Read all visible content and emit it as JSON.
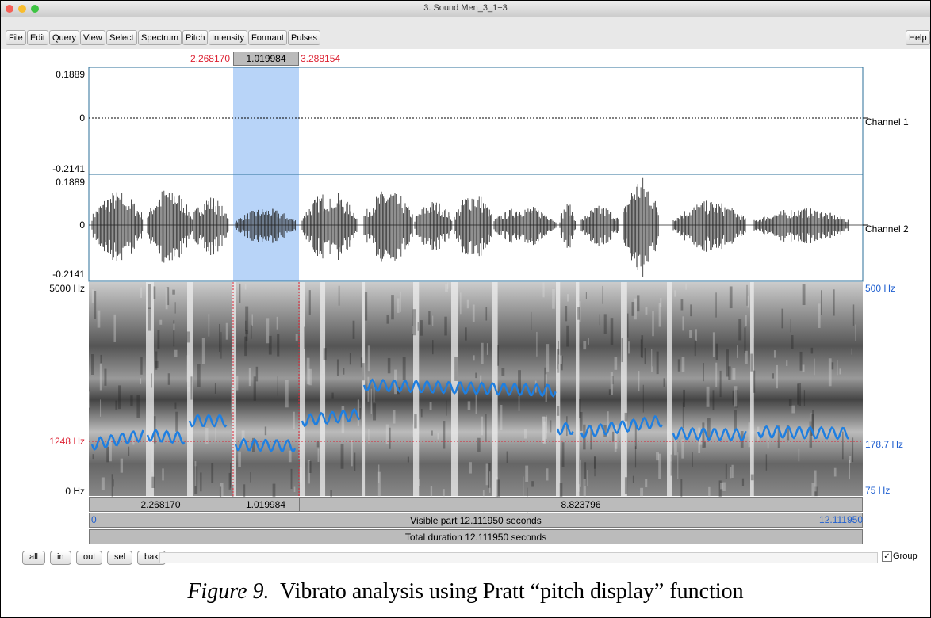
{
  "window": {
    "title": "3. Sound Men_3_1+3"
  },
  "menu": [
    "File",
    "Edit",
    "Query",
    "View",
    "Select",
    "Spectrum",
    "Pitch",
    "Intensity",
    "Formant",
    "Pulses"
  ],
  "help": "Help",
  "selection": {
    "start": "2.268170",
    "length": "1.019984",
    "end": "3.288154"
  },
  "channels": [
    {
      "name": "Channel 1",
      "top": "0.1889",
      "zero": "0",
      "bottom": "-0.2141"
    },
    {
      "name": "Channel 2",
      "top": "0.1889",
      "zero": "0",
      "bottom": "-0.2141"
    }
  ],
  "spectrogram": {
    "top": "5000 Hz",
    "cursor": "1248 Hz",
    "bottom": "0 Hz"
  },
  "pitch": {
    "top": "500 Hz",
    "cursor": "178.7 Hz",
    "bottom": "75 Hz"
  },
  "bars": {
    "cells": [
      "2.268170",
      "1.019984",
      "8.823796"
    ],
    "visible_start": "0",
    "visible": "Visible part 12.111950 seconds",
    "visible_end": "12.111950",
    "total": "Total duration 12.111950 seconds"
  },
  "buttons": [
    "all",
    "in",
    "out",
    "sel",
    "bak"
  ],
  "group": "Group",
  "caption": {
    "label": "Figure 9.",
    "text": "Vibrato analysis using Pratt “pitch display” function"
  }
}
